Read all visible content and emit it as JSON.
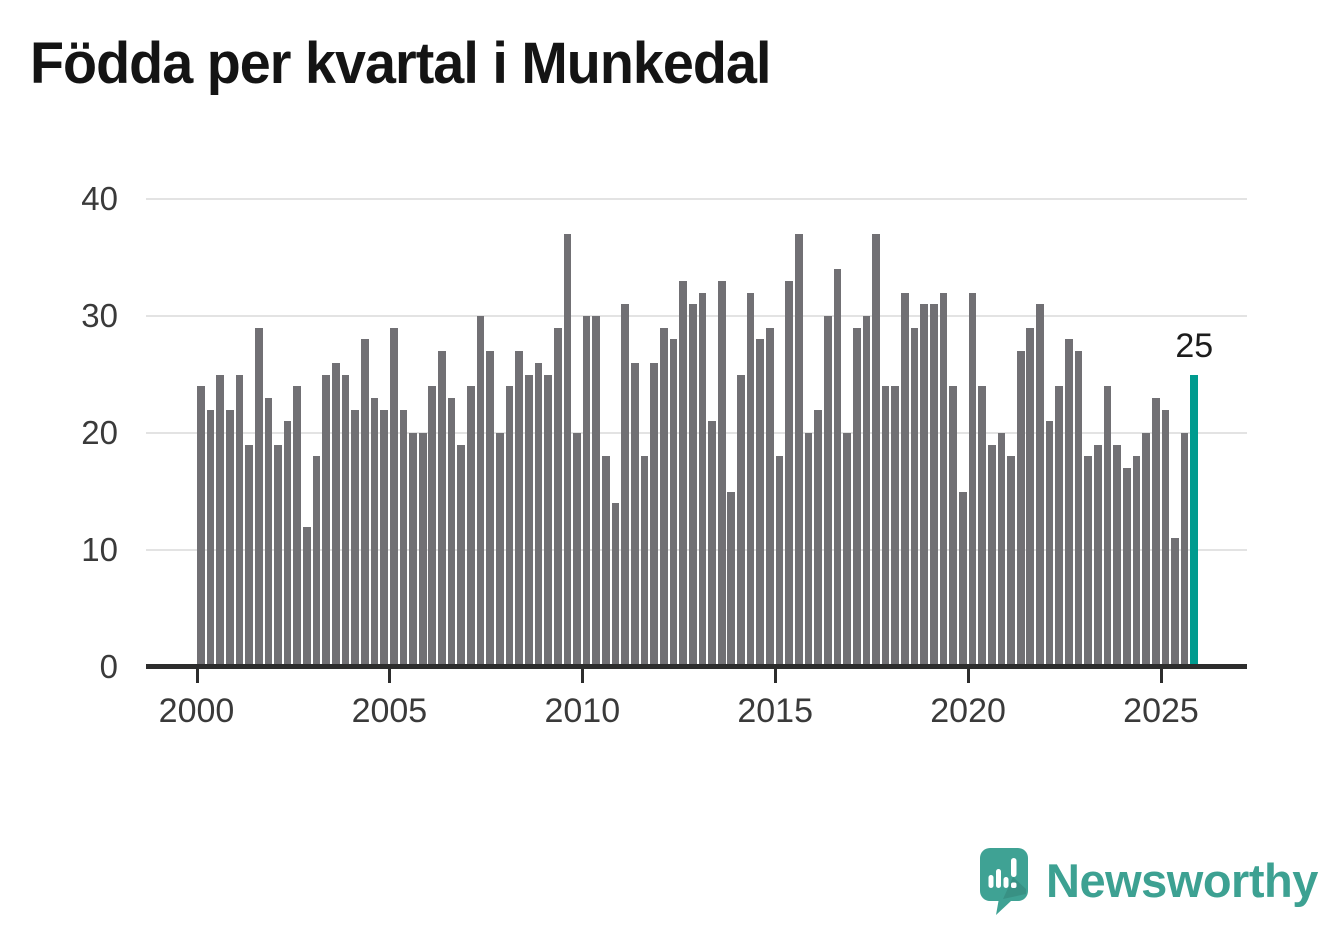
{
  "title": "Födda per kvartal i Munkedal",
  "footer": {
    "brand": "Newsworthy"
  },
  "colors": {
    "bar": "#717074",
    "highlight": "#009b8f",
    "axis": "#2d2d2d",
    "gridline": "#e3e3e3",
    "logo_teal": "#3fa294",
    "wordmark_teal": "#3da192"
  },
  "chart_data": {
    "type": "bar",
    "title": "Födda per kvartal i Munkedal",
    "xlabel": "",
    "ylabel": "",
    "ylim": [
      0,
      40
    ],
    "y_ticks": [
      "0",
      "10",
      "20",
      "30",
      "40"
    ],
    "x_tick_labels": [
      "2000",
      "2005",
      "2010",
      "2015",
      "2020",
      "2025"
    ],
    "grid": "horizontal",
    "legend": "none",
    "highlight": {
      "index": 103,
      "label": "25"
    },
    "categories": [
      "2000 Q1",
      "2000 Q2",
      "2000 Q3",
      "2000 Q4",
      "2001 Q1",
      "2001 Q2",
      "2001 Q3",
      "2001 Q4",
      "2002 Q1",
      "2002 Q2",
      "2002 Q3",
      "2002 Q4",
      "2003 Q1",
      "2003 Q2",
      "2003 Q3",
      "2003 Q4",
      "2004 Q1",
      "2004 Q2",
      "2004 Q3",
      "2004 Q4",
      "2005 Q1",
      "2005 Q2",
      "2005 Q3",
      "2005 Q4",
      "2006 Q1",
      "2006 Q2",
      "2006 Q3",
      "2006 Q4",
      "2007 Q1",
      "2007 Q2",
      "2007 Q3",
      "2007 Q4",
      "2008 Q1",
      "2008 Q2",
      "2008 Q3",
      "2008 Q4",
      "2009 Q1",
      "2009 Q2",
      "2009 Q3",
      "2009 Q4",
      "2010 Q1",
      "2010 Q2",
      "2010 Q3",
      "2010 Q4",
      "2011 Q1",
      "2011 Q2",
      "2011 Q3",
      "2011 Q4",
      "2012 Q1",
      "2012 Q2",
      "2012 Q3",
      "2012 Q4",
      "2013 Q1",
      "2013 Q2",
      "2013 Q3",
      "2013 Q4",
      "2014 Q1",
      "2014 Q2",
      "2014 Q3",
      "2014 Q4",
      "2015 Q1",
      "2015 Q2",
      "2015 Q3",
      "2015 Q4",
      "2016 Q1",
      "2016 Q2",
      "2016 Q3",
      "2016 Q4",
      "2017 Q1",
      "2017 Q2",
      "2017 Q3",
      "2017 Q4",
      "2018 Q1",
      "2018 Q2",
      "2018 Q3",
      "2018 Q4",
      "2019 Q1",
      "2019 Q2",
      "2019 Q3",
      "2019 Q4",
      "2020 Q1",
      "2020 Q2",
      "2020 Q3",
      "2020 Q4",
      "2021 Q1",
      "2021 Q2",
      "2021 Q3",
      "2021 Q4",
      "2022 Q1",
      "2022 Q2",
      "2022 Q3",
      "2022 Q4",
      "2023 Q1",
      "2023 Q2",
      "2023 Q3",
      "2023 Q4",
      "2024 Q1",
      "2024 Q2",
      "2024 Q3",
      "2024 Q4",
      "2025 Q1",
      "2025 Q2",
      "2025 Q3",
      "2025 Q4"
    ],
    "values": [
      24,
      22,
      25,
      22,
      25,
      19,
      29,
      23,
      19,
      21,
      24,
      12,
      18,
      25,
      26,
      25,
      22,
      28,
      23,
      22,
      29,
      22,
      20,
      20,
      24,
      27,
      23,
      19,
      24,
      30,
      27,
      20,
      24,
      27,
      25,
      26,
      25,
      29,
      37,
      20,
      30,
      30,
      18,
      14,
      31,
      26,
      18,
      26,
      29,
      28,
      33,
      31,
      32,
      21,
      33,
      15,
      25,
      32,
      28,
      29,
      18,
      33,
      37,
      20,
      22,
      30,
      34,
      20,
      29,
      30,
      37,
      24,
      24,
      32,
      29,
      31,
      31,
      32,
      24,
      15,
      32,
      24,
      19,
      20,
      18,
      27,
      29,
      31,
      21,
      24,
      28,
      27,
      18,
      19,
      24,
      19,
      17,
      18,
      20,
      23,
      22,
      11,
      20,
      25
    ]
  }
}
